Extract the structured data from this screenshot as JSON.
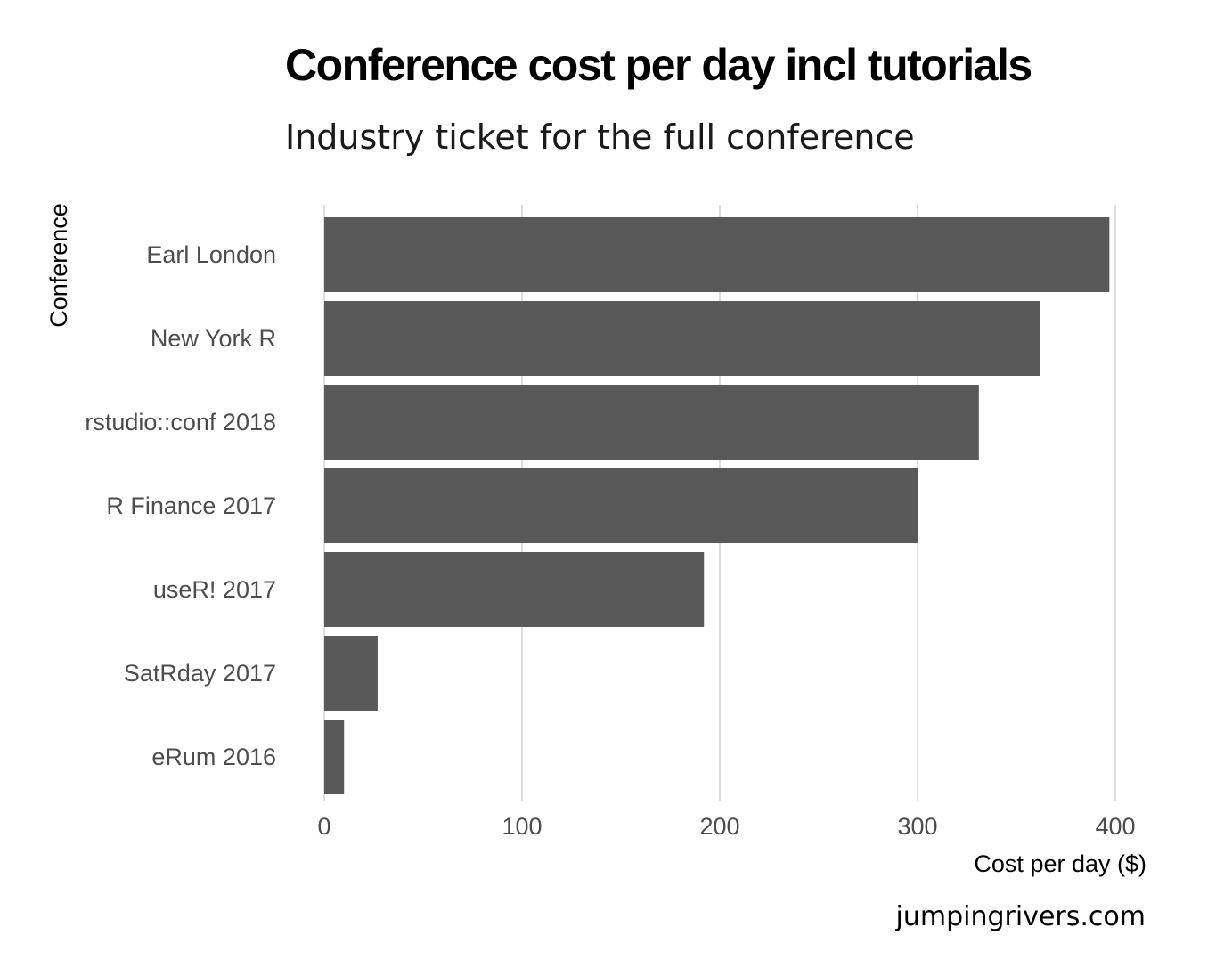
{
  "chart_data": {
    "type": "bar",
    "orientation": "horizontal",
    "title": "Conference cost per day incl tutorials",
    "subtitle": "Industry ticket for the full conference",
    "xlabel": "Cost per day ($)",
    "ylabel": "Conference",
    "categories": [
      "Earl London",
      "New York R",
      "rstudio::conf 2018",
      "R Finance 2017",
      "useR! 2017",
      "SatRday 2017",
      "eRum 2016"
    ],
    "values": [
      397,
      362,
      331,
      300,
      192,
      27,
      10
    ],
    "xlim": [
      0,
      400
    ],
    "xticks": [
      "0",
      "100",
      "200",
      "300",
      "400"
    ],
    "grid": "vertical major gridlines",
    "bar_color": "#595959",
    "caption": "jumpingrivers.com"
  }
}
